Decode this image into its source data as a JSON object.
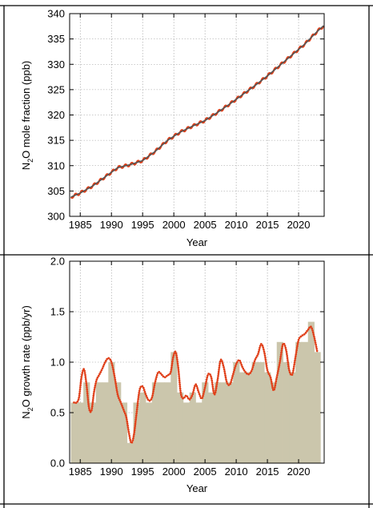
{
  "colors": {
    "line_gray": "#555555",
    "monthly_red": "#e0401a",
    "bar_fill": "#cbc6ac",
    "grid": "#9a9a9a"
  },
  "chart_data": [
    {
      "type": "line",
      "xlabel": "Year",
      "ylabel_prefix": "N",
      "ylabel_sub": "2",
      "ylabel_suffix": "O mole fraction (ppb)",
      "xlim": [
        1983.3,
        2024.1
      ],
      "ylim": [
        300,
        340
      ],
      "xticks": [
        1985,
        1990,
        1995,
        2000,
        2005,
        2010,
        2015,
        2020
      ],
      "yticks": [
        300,
        305,
        310,
        315,
        320,
        325,
        330,
        335,
        340
      ],
      "grid": true,
      "series": [
        {
          "style": "gray-line-with-red-overlay",
          "x": [
            1983.5,
            1985,
            1987,
            1989,
            1991,
            1993,
            1995,
            1997,
            1999,
            2001,
            2003,
            2005,
            2007,
            2009,
            2011,
            2013,
            2015,
            2017,
            2019,
            2021,
            2023,
            2024
          ],
          "y": [
            303.8,
            304.6,
            306.0,
            307.8,
            309.6,
            310.2,
            311.0,
            312.8,
            315.0,
            316.6,
            317.8,
            318.9,
            320.5,
            322.2,
            324.0,
            325.8,
            327.7,
            329.8,
            331.9,
            334.0,
            336.5,
            337.6
          ]
        }
      ]
    },
    {
      "type": "bar",
      "xlabel": "Year",
      "ylabel_prefix": "N",
      "ylabel_sub": "2",
      "ylabel_suffix": "O growth rate (ppb/yr)",
      "xlim": [
        1983.3,
        2024.1
      ],
      "ylim": [
        0.0,
        2.0
      ],
      "xticks": [
        1985,
        1990,
        1995,
        2000,
        2005,
        2010,
        2015,
        2020
      ],
      "yticks": [
        "0.0",
        "0.5",
        "1.0",
        "1.5",
        "2.0"
      ],
      "grid": true,
      "categories": [
        1984,
        1985,
        1986,
        1987,
        1988,
        1989,
        1990,
        1991,
        1992,
        1993,
        1994,
        1995,
        1996,
        1997,
        1998,
        1999,
        2000,
        2001,
        2002,
        2003,
        2004,
        2005,
        2006,
        2007,
        2008,
        2009,
        2010,
        2011,
        2012,
        2013,
        2014,
        2015,
        2016,
        2017,
        2018,
        2019,
        2020,
        2021,
        2022,
        2023
      ],
      "values": [
        0.6,
        0.6,
        0.8,
        0.6,
        0.8,
        0.8,
        1.0,
        0.8,
        0.6,
        0.2,
        0.6,
        0.7,
        0.6,
        0.8,
        0.8,
        0.8,
        1.1,
        0.7,
        0.6,
        0.7,
        0.6,
        0.8,
        0.7,
        0.8,
        0.8,
        0.8,
        1.0,
        0.9,
        0.9,
        1.0,
        1.0,
        0.9,
        0.8,
        1.2,
        1.0,
        0.9,
        1.2,
        1.2,
        1.4,
        1.1
      ],
      "growth_curve": {
        "x": [
          1984.0,
          1984.4,
          1984.8,
          1985.2,
          1985.6,
          1986.0,
          1986.4,
          1986.8,
          1987.2,
          1987.6,
          1988.0,
          1988.5,
          1989.0,
          1989.5,
          1990.0,
          1990.5,
          1991.0,
          1991.5,
          1992.0,
          1992.4,
          1992.8,
          1993.2,
          1993.6,
          1994.0,
          1994.5,
          1995.0,
          1995.5,
          1996.0,
          1996.5,
          1997.0,
          1997.5,
          1998.0,
          1998.5,
          1999.0,
          1999.5,
          1999.9,
          2000.3,
          2000.7,
          2001.1,
          2001.5,
          2002.0,
          2002.5,
          2003.0,
          2003.5,
          2004.0,
          2004.5,
          2005.0,
          2005.5,
          2006.0,
          2006.5,
          2007.0,
          2007.5,
          2008.0,
          2008.5,
          2009.0,
          2009.5,
          2010.0,
          2010.5,
          2011.0,
          2011.5,
          2012.0,
          2012.5,
          2013.0,
          2013.5,
          2014.0,
          2014.5,
          2015.0,
          2015.5,
          2016.0,
          2016.5,
          2017.0,
          2017.5,
          2018.0,
          2018.5,
          2019.0,
          2019.5,
          2020.0,
          2020.5,
          2021.0,
          2021.5,
          2022.0,
          2022.5,
          2023.0
        ],
        "y": [
          0.6,
          0.6,
          0.65,
          0.85,
          0.93,
          0.78,
          0.55,
          0.52,
          0.7,
          0.82,
          0.87,
          0.93,
          1.0,
          1.04,
          1.0,
          0.86,
          0.68,
          0.6,
          0.52,
          0.45,
          0.3,
          0.2,
          0.28,
          0.48,
          0.72,
          0.76,
          0.68,
          0.62,
          0.65,
          0.8,
          0.9,
          0.88,
          0.85,
          0.87,
          0.9,
          1.05,
          1.1,
          0.95,
          0.7,
          0.64,
          0.67,
          0.63,
          0.68,
          0.78,
          0.7,
          0.64,
          0.75,
          0.88,
          0.85,
          0.68,
          0.82,
          1.02,
          0.95,
          0.8,
          0.78,
          0.88,
          0.98,
          1.02,
          0.95,
          0.9,
          0.88,
          0.92,
          1.02,
          1.08,
          1.18,
          1.1,
          0.92,
          0.85,
          0.72,
          0.85,
          1.0,
          1.18,
          1.12,
          0.92,
          0.88,
          1.05,
          1.22,
          1.26,
          1.28,
          1.32,
          1.35,
          1.25,
          1.1
        ]
      }
    }
  ]
}
